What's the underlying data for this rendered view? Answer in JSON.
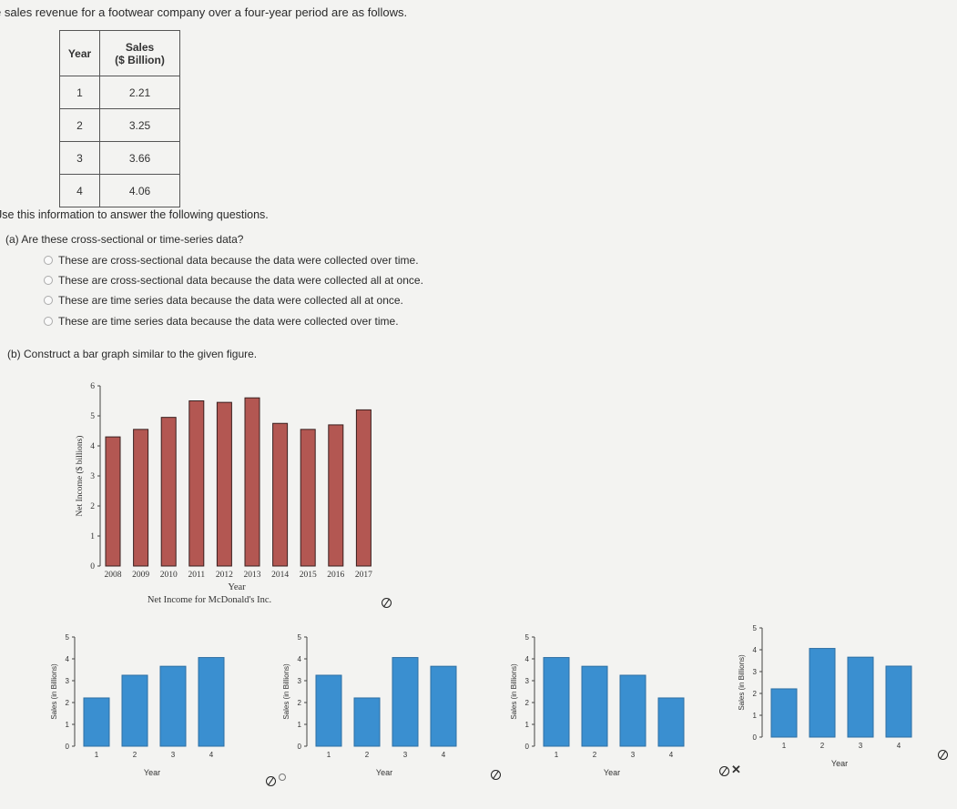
{
  "intro_text": "e sales revenue for a footwear company over a four-year period are as follows.",
  "table": {
    "headers": [
      "Year",
      "Sales",
      "($ Billion)"
    ],
    "rows": [
      {
        "year": "1",
        "sales": "2.21"
      },
      {
        "year": "2",
        "sales": "3.25"
      },
      {
        "year": "3",
        "sales": "3.66"
      },
      {
        "year": "4",
        "sales": "4.06"
      }
    ]
  },
  "instruction": "Jse this information to answer the following questions.",
  "question_a": {
    "label": "(a)  Are these cross-sectional or time-series data?",
    "options": [
      "These are cross-sectional data because the data were collected over time.",
      "These are cross-sectional data because the data were collected all at once.",
      "These are time series data because the data were collected all at once.",
      "These are time series data because the data were collected over time."
    ]
  },
  "question_b": {
    "label": "(b)  Construct a bar graph similar to the given figure."
  },
  "colors": {
    "reference_bar": "#b35752",
    "answer_bar": "#3a8fd0",
    "background": "#f3f3f1"
  },
  "chart_data": [
    {
      "type": "bar",
      "categories": [
        "2008",
        "2009",
        "2010",
        "2011",
        "2012",
        "2013",
        "2014",
        "2015",
        "2016",
        "2017"
      ],
      "values": [
        4.3,
        4.55,
        4.95,
        5.5,
        5.45,
        5.6,
        4.75,
        4.55,
        4.7,
        5.2
      ],
      "ylim": [
        0,
        6
      ],
      "yticks": [
        "0",
        "1",
        "2",
        "3",
        "4",
        "5",
        "6"
      ],
      "xlabel": "Year",
      "ylabel": "Net Income ($ billions)",
      "caption": "Net Income for McDonald's Inc."
    },
    {
      "type": "bar",
      "categories": [
        "1",
        "2",
        "3",
        "4"
      ],
      "values": [
        2.21,
        3.25,
        3.66,
        4.06
      ],
      "ylim": [
        0,
        5
      ],
      "yticks": [
        "0",
        "1",
        "2",
        "3",
        "4",
        "5"
      ],
      "xlabel": "Year",
      "ylabel": "Sales (in Billions)"
    },
    {
      "type": "bar",
      "categories": [
        "1",
        "2",
        "3",
        "4"
      ],
      "values": [
        3.25,
        2.21,
        4.06,
        3.66
      ],
      "ylim": [
        0,
        5
      ],
      "yticks": [
        "0",
        "1",
        "2",
        "3",
        "4",
        "5"
      ],
      "xlabel": "Year",
      "ylabel": "Sales (in Billions)"
    },
    {
      "type": "bar",
      "categories": [
        "1",
        "2",
        "3",
        "4"
      ],
      "values": [
        4.06,
        3.66,
        3.25,
        2.21
      ],
      "ylim": [
        0,
        5
      ],
      "yticks": [
        "0",
        "1",
        "2",
        "3",
        "4",
        "5"
      ],
      "xlabel": "Year",
      "ylabel": "Sales (in Billions)"
    },
    {
      "type": "bar",
      "categories": [
        "1",
        "2",
        "3",
        "4"
      ],
      "values": [
        2.21,
        4.06,
        3.66,
        3.25
      ],
      "ylim": [
        0,
        5
      ],
      "yticks": [
        "0",
        "1",
        "2",
        "3",
        "4",
        "5"
      ],
      "xlabel": "Year",
      "ylabel": "Sales (in Billions)"
    }
  ]
}
